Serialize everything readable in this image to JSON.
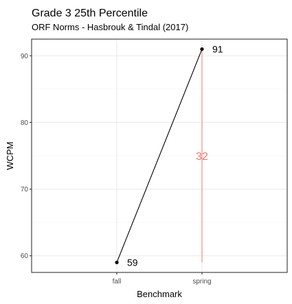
{
  "chart_data": {
    "type": "line",
    "title": "Grade 3 25th Percentile",
    "subtitle": "ORF Norms - Hasbrouk & Tindal (2017)",
    "xlabel": "Benchmark",
    "ylabel": "WCPM",
    "categories": [
      "fall",
      "spring"
    ],
    "values": [
      59,
      91
    ],
    "point_labels": [
      "59",
      "91"
    ],
    "ylim": [
      57.5,
      92.5
    ],
    "yticks": [
      60,
      70,
      80,
      90
    ],
    "grid": true,
    "difference": {
      "value": 32,
      "label": "32",
      "from_value": 59,
      "to_value": 91,
      "at_category": "spring",
      "color": "#f8766d"
    },
    "colors": {
      "line": "#000000",
      "point": "#000000",
      "panel_border": "#333333",
      "grid_major": "#ebebeb",
      "grid_minor": "#f5f5f5"
    }
  }
}
